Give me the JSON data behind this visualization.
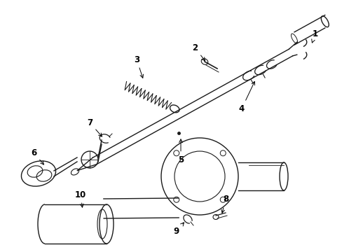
{
  "background_color": "#ffffff",
  "line_color": "#1a1a1a",
  "line_width": 1.0,
  "label_fontsize": 8.5,
  "figsize": [
    4.89,
    3.6
  ],
  "dpi": 100
}
